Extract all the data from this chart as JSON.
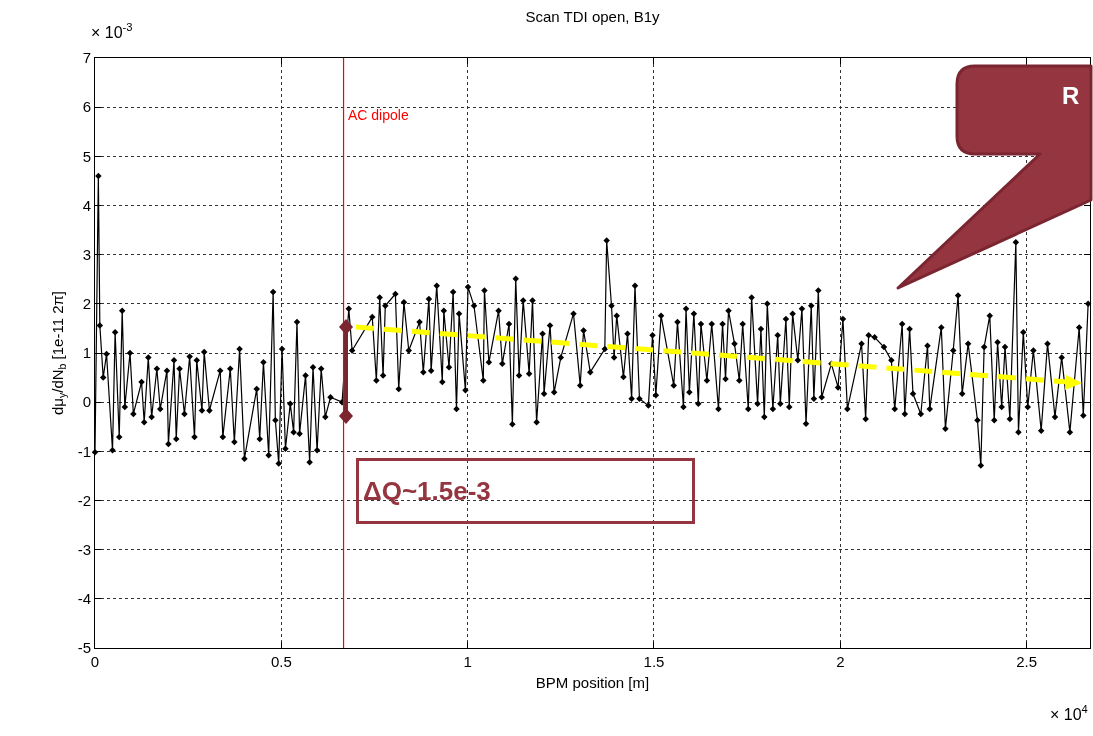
{
  "chart_data": {
    "type": "line",
    "title": "Scan TDI open, B1y",
    "xlabel": "BPM position [m]",
    "ylabel": "dμ$_{y}$/dN$_{b}$ [1e-11 2π]",
    "annotations": [
      "× 10$^{-3}$",
      "× 10$^{4}$",
      "ΔQ~1.5e-3",
      "R"
    ],
    "xlim": [
      0,
      2.67
    ],
    "xticks": [
      0,
      0.5,
      1,
      1.5,
      2,
      2.5
    ],
    "ylim": [
      -5,
      7
    ],
    "yticks": [
      -5,
      -4,
      -3,
      -2,
      -1,
      0,
      1,
      2,
      3,
      4,
      5,
      6,
      7
    ],
    "grid": true,
    "marker": "diamond",
    "line_style": "solid",
    "ref_lines": [
      {
        "axis": "x",
        "value": 0.667,
        "label": "AC dipole",
        "color": "#ff0000"
      }
    ],
    "series": [
      {
        "color": "#000000",
        "x": [
          0.0,
          0.009,
          0.013,
          0.022,
          0.031,
          0.047,
          0.054,
          0.065,
          0.073,
          0.08,
          0.094,
          0.103,
          0.125,
          0.132,
          0.143,
          0.152,
          0.166,
          0.175,
          0.193,
          0.197,
          0.212,
          0.218,
          0.227,
          0.24,
          0.254,
          0.267,
          0.273,
          0.287,
          0.293,
          0.307,
          0.336,
          0.343,
          0.363,
          0.374,
          0.388,
          0.401,
          0.434,
          0.442,
          0.452,
          0.466,
          0.478,
          0.484,
          0.493,
          0.502,
          0.511,
          0.524,
          0.533,
          0.542,
          0.549,
          0.565,
          0.576,
          0.585,
          0.596,
          0.607,
          0.618,
          0.632,
          0.663,
          0.681,
          0.69,
          0.744,
          0.755,
          0.764,
          0.773,
          0.779,
          0.806,
          0.815,
          0.829,
          0.842,
          0.871,
          0.881,
          0.896,
          0.902,
          0.917,
          0.932,
          0.936,
          0.95,
          0.961,
          0.97,
          0.977,
          0.994,
          1.001,
          1.017,
          1.042,
          1.045,
          1.057,
          1.083,
          1.093,
          1.111,
          1.12,
          1.129,
          1.138,
          1.149,
          1.165,
          1.174,
          1.185,
          1.201,
          1.205,
          1.221,
          1.232,
          1.25,
          1.284,
          1.302,
          1.311,
          1.329,
          1.368,
          1.373,
          1.386,
          1.393,
          1.4,
          1.418,
          1.429,
          1.44,
          1.449,
          1.461,
          1.485,
          1.496,
          1.505,
          1.519,
          1.553,
          1.563,
          1.579,
          1.586,
          1.595,
          1.607,
          1.619,
          1.626,
          1.642,
          1.655,
          1.673,
          1.684,
          1.692,
          1.7,
          1.716,
          1.729,
          1.738,
          1.753,
          1.762,
          1.778,
          1.787,
          1.796,
          1.804,
          1.819,
          1.832,
          1.839,
          1.854,
          1.863,
          1.872,
          1.886,
          1.897,
          1.908,
          1.922,
          1.929,
          1.941,
          1.95,
          1.976,
          1.994,
          2.007,
          2.019,
          2.057,
          2.068,
          2.076,
          2.092,
          2.117,
          2.137,
          2.146,
          2.166,
          2.173,
          2.186,
          2.195,
          2.216,
          2.234,
          2.24,
          2.271,
          2.282,
          2.303,
          2.316,
          2.327,
          2.343,
          2.368,
          2.377,
          2.386,
          2.401,
          2.413,
          2.422,
          2.433,
          2.442,
          2.455,
          2.471,
          2.478,
          2.491,
          2.503,
          2.518,
          2.539,
          2.556,
          2.576,
          2.594,
          2.616,
          2.641,
          2.652,
          2.665
        ],
        "values": [
          -1.02,
          4.6,
          1.56,
          0.5,
          0.98,
          -0.98,
          1.42,
          -0.71,
          1.86,
          -0.1,
          1.0,
          -0.24,
          0.41,
          -0.41,
          0.91,
          -0.3,
          0.68,
          -0.14,
          0.64,
          -0.85,
          0.85,
          -0.75,
          0.68,
          -0.24,
          0.93,
          -0.71,
          0.85,
          -0.17,
          1.02,
          -0.17,
          0.64,
          -0.71,
          0.68,
          -0.81,
          1.08,
          -1.15,
          0.27,
          -0.75,
          0.81,
          -1.08,
          2.24,
          -0.37,
          -1.25,
          1.08,
          -0.95,
          -0.03,
          -0.61,
          1.63,
          -0.64,
          0.54,
          -1.22,
          0.71,
          -0.98,
          0.68,
          -0.3,
          0.1,
          0.0,
          1.9,
          1.05,
          1.73,
          0.44,
          2.13,
          0.54,
          1.96,
          2.2,
          0.27,
          2.03,
          1.05,
          1.63,
          0.61,
          2.1,
          0.64,
          2.37,
          0.41,
          1.86,
          0.71,
          2.24,
          -0.14,
          1.8,
          0.24,
          2.34,
          1.96,
          0.44,
          2.27,
          0.81,
          1.86,
          0.78,
          1.59,
          -0.45,
          2.51,
          0.54,
          2.07,
          0.58,
          2.07,
          -0.41,
          1.39,
          0.17,
          1.56,
          0.2,
          0.91,
          1.8,
          0.34,
          1.46,
          0.61,
          1.08,
          3.29,
          1.96,
          0.91,
          1.76,
          0.51,
          1.39,
          0.07,
          2.37,
          0.07,
          -0.07,
          1.36,
          0.14,
          1.76,
          0.34,
          1.63,
          -0.1,
          1.9,
          0.2,
          1.8,
          -0.03,
          1.59,
          0.44,
          1.59,
          -0.14,
          1.59,
          0.47,
          1.86,
          1.19,
          0.44,
          1.59,
          -0.14,
          2.13,
          -0.03,
          1.49,
          -0.3,
          2.0,
          -0.14,
          1.36,
          -0.03,
          1.69,
          -0.1,
          1.8,
          0.85,
          1.9,
          -0.44,
          1.96,
          0.07,
          2.27,
          0.1,
          0.78,
          0.3,
          1.69,
          -0.14,
          1.19,
          -0.34,
          1.36,
          1.32,
          1.12,
          0.85,
          -0.14,
          1.59,
          -0.24,
          1.49,
          0.17,
          -0.24,
          1.15,
          -0.14,
          1.52,
          -0.54,
          1.05,
          2.17,
          0.17,
          1.19,
          -0.37,
          -1.29,
          1.12,
          1.76,
          -0.37,
          1.22,
          -0.1,
          1.12,
          -0.34,
          3.25,
          -0.61,
          1.42,
          -0.1,
          1.05,
          -0.58,
          1.19,
          -0.3,
          0.91,
          -0.61,
          1.52,
          -0.27,
          2.0
        ]
      }
    ]
  }
}
